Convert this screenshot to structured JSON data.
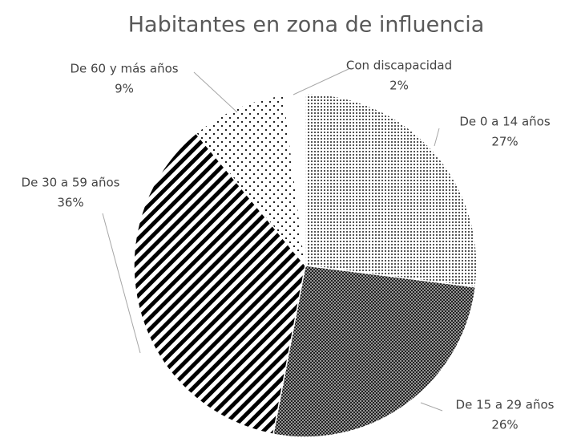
{
  "chart_data": {
    "type": "pie",
    "title": "Habitantes en zona de influencia",
    "categories": [
      "De 0 a 14 años",
      "De 15 a 29 años",
      "De 30 a 59 años",
      "De 60 y más años",
      "Con discapacidad"
    ],
    "values": [
      27,
      26,
      36,
      9,
      2
    ],
    "value_labels": [
      "27%",
      "26%",
      "36%",
      "9%",
      "2%"
    ]
  }
}
